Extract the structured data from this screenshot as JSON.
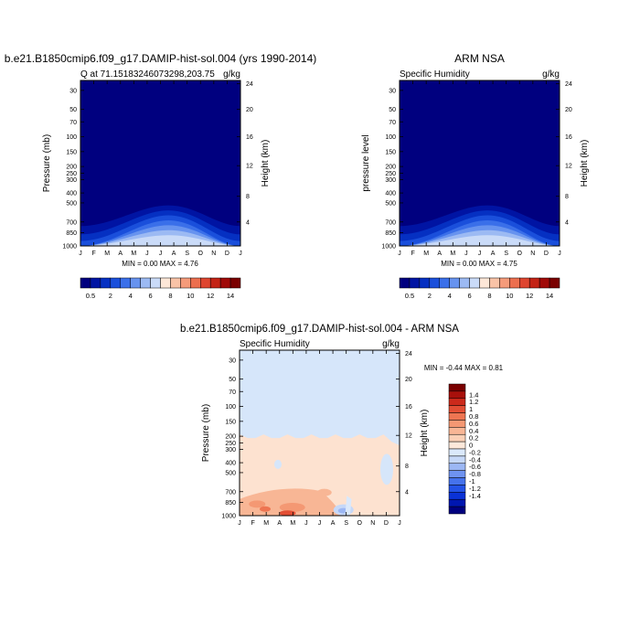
{
  "chart_data": [
    {
      "type": "heatmap",
      "title": "b.e21.B1850cmip6.f09_g17.DAMIP-hist-sol.004 (yrs 1990-2014)",
      "subtitle_left": "Q at 71.15183246073298,203.75",
      "subtitle_right": "g/kg",
      "ylabel": "Pressure (mb)",
      "ylabel_right": "Height (km)",
      "x_ticks": [
        "J",
        "F",
        "M",
        "A",
        "M",
        "J",
        "J",
        "A",
        "S",
        "O",
        "N",
        "D",
        "J"
      ],
      "y_ticks": [
        "30",
        "50",
        "70",
        "100",
        "150",
        "200",
        "250",
        "300",
        "400",
        "500",
        "700",
        "850",
        "1000"
      ],
      "height_ticks": [
        "24",
        "20",
        "16",
        "12",
        "8",
        "4"
      ],
      "min_max": "MIN =   0.00 MAX =   4.76",
      "min": 0.0,
      "max": 4.76,
      "colorbar": {
        "labels": [
          "0.5",
          "2",
          "4",
          "6",
          "8",
          "10",
          "12",
          "14"
        ],
        "levels": [
          0.5,
          1,
          2,
          3,
          4,
          5,
          6,
          7,
          8,
          9,
          10,
          11,
          12,
          13,
          14
        ]
      }
    },
    {
      "type": "heatmap",
      "title": "ARM NSA",
      "subtitle_left": "Specific Humidity",
      "subtitle_right": "g/kg",
      "ylabel": "pressure level",
      "ylabel_right": "Height (km)",
      "x_ticks": [
        "J",
        "F",
        "M",
        "A",
        "M",
        "J",
        "J",
        "A",
        "S",
        "O",
        "N",
        "D",
        "J"
      ],
      "y_ticks": [
        "30",
        "50",
        "70",
        "100",
        "150",
        "200",
        "250",
        "300",
        "400",
        "500",
        "700",
        "850",
        "1000"
      ],
      "height_ticks": [
        "24",
        "20",
        "16",
        "12",
        "8",
        "4"
      ],
      "min_max": "MIN =   0.00 MAX =   4.75",
      "min": 0.0,
      "max": 4.75,
      "colorbar": {
        "labels": [
          "0.5",
          "2",
          "4",
          "6",
          "8",
          "10",
          "12",
          "14"
        ],
        "levels": [
          0.5,
          1,
          2,
          3,
          4,
          5,
          6,
          7,
          8,
          9,
          10,
          11,
          12,
          13,
          14
        ]
      }
    },
    {
      "type": "heatmap",
      "title": "b.e21.B1850cmip6.f09_g17.DAMIP-hist-sol.004 - ARM NSA",
      "subtitle_left": "Specific Humidity",
      "subtitle_right": "g/kg",
      "ylabel": "Pressure (mb)",
      "ylabel_right": "Height (km)",
      "x_ticks": [
        "J",
        "F",
        "M",
        "A",
        "M",
        "J",
        "J",
        "A",
        "S",
        "O",
        "N",
        "D",
        "J"
      ],
      "y_ticks": [
        "30",
        "50",
        "70",
        "100",
        "150",
        "200",
        "250",
        "300",
        "400",
        "500",
        "700",
        "850",
        "1000"
      ],
      "height_ticks": [
        "24",
        "20",
        "16",
        "12",
        "8",
        "4"
      ],
      "min_max": "MIN =  -0.44 MAX =   0.81",
      "min": -0.44,
      "max": 0.81,
      "colorbar": {
        "labels": [
          "1.4",
          "1.2",
          "1",
          "0.8",
          "0.6",
          "0.4",
          "0.2",
          "0",
          "-0.2",
          "-0.4",
          "-0.6",
          "-0.8",
          "-1",
          "-1.2",
          "-1.4"
        ]
      }
    }
  ],
  "colors": {
    "seq_palette": [
      "#00007f",
      "#0014a3",
      "#0530c2",
      "#1a4fdb",
      "#3a6fe9",
      "#6793ef",
      "#9cbaf3",
      "#cadbf8",
      "#fde7d8",
      "#f9c3a7",
      "#f59b7a",
      "#ec6f4f",
      "#de4530",
      "#c32315",
      "#a00a08",
      "#7a0000"
    ],
    "diff_palette": [
      "#00007f",
      "#0016b0",
      "#0a32d6",
      "#2352e6",
      "#4572ec",
      "#6f93f0",
      "#9cb7f4",
      "#c6d8f8",
      "#dbe9fb",
      "#fde8da",
      "#fbd0b6",
      "#f8b695",
      "#f49873",
      "#ee7552",
      "#e24e34",
      "#cc2a1b",
      "#a8100b",
      "#7a0000"
    ],
    "bg_diff": "#d6e6fa",
    "warm_diff": "#fde2d0"
  }
}
